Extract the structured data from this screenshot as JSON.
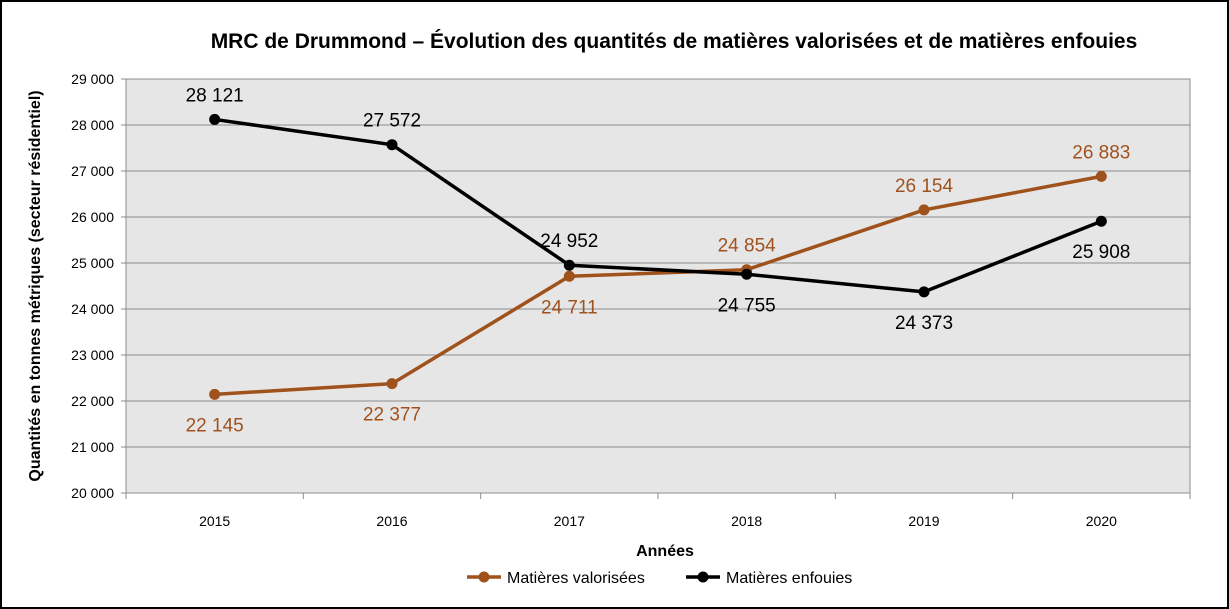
{
  "chart_data": {
    "type": "line",
    "title": "MRC de Drummond – Évolution des quantités de matières valorisées et de matières enfouies",
    "xlabel": "Années",
    "ylabel": "Quantités en tonnes métriques (secteur résidentiel)",
    "categories": [
      "2015",
      "2016",
      "2017",
      "2018",
      "2019",
      "2020"
    ],
    "ylim": [
      20000,
      29000
    ],
    "yticks": [
      20000,
      21000,
      22000,
      23000,
      24000,
      25000,
      26000,
      27000,
      28000,
      29000
    ],
    "ytick_labels": [
      "20 000",
      "21 000",
      "22 000",
      "23 000",
      "24 000",
      "25 000",
      "26 000",
      "27 000",
      "28 000",
      "29 000"
    ],
    "grid": true,
    "legend_position": "bottom",
    "plot_background": "#e6e6e6",
    "series": [
      {
        "name": "Matières valorisées",
        "color": "#a0521d",
        "values": [
          22145,
          22377,
          24711,
          24854,
          26154,
          26883
        ],
        "labels": [
          "22 145",
          "22 377",
          "24 711",
          "24 854",
          "26 154",
          "26 883"
        ],
        "label_side": [
          "below",
          "below",
          "below",
          "above",
          "above",
          "above"
        ]
      },
      {
        "name": "Matières enfouies",
        "color": "#000000",
        "values": [
          28121,
          27572,
          24952,
          24755,
          24373,
          25908
        ],
        "labels": [
          "28 121",
          "27 572",
          "24 952",
          "24 755",
          "24 373",
          "25 908"
        ],
        "label_side": [
          "above",
          "above",
          "above",
          "below",
          "below",
          "below"
        ]
      }
    ]
  }
}
